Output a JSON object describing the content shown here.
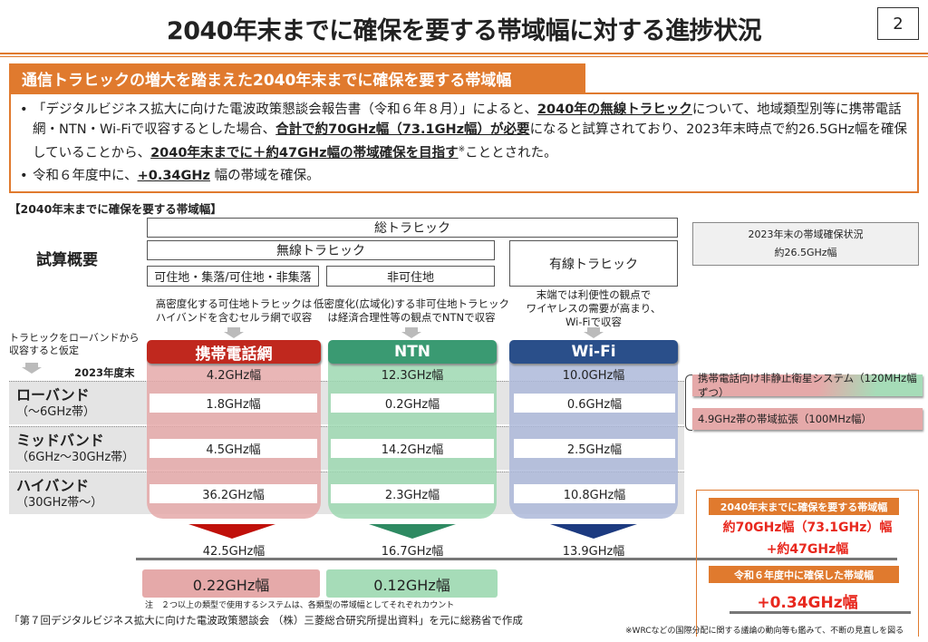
{
  "title": "2040年末までに確保を要する帯域幅に対する進捗状況",
  "page_number": "2",
  "summary": {
    "header": "通信トラヒックの増大を踏まえた2040年末までに確保を要する帯域幅",
    "b1_a": "「デジタルビジネス拡大に向けた電波政策懇談会報告書（令和６年８月）」によると、",
    "b1_u1": "2040年の無線トラヒック",
    "b1_b": "について、地域類型別等に携帯電話網・NTN・Wi-Fiで収容するとした場合、",
    "b1_u2": "合計で約70GHz幅（73.1GHz幅）が必要",
    "b1_c": "になると試算されており、2023年末時点で約26.5GHz幅を確保していることから、",
    "b1_u3": "2040年末までに＋約47GHz幅の帯域確保を目指す",
    "b1_note": "※",
    "b1_d": "こととされた。",
    "b2_a": "令和６年度中に、",
    "b2_u": "+0.34GHz",
    "b2_b": " 幅の帯域を確保。"
  },
  "diagram": {
    "section_label": "【2040年末までに確保を要する帯域幅】",
    "overview_label": "試算概要",
    "total_traffic": "総トラヒック",
    "wireless_traffic": "無線トラヒック",
    "wired_traffic": "有線トラヒック",
    "habitable": "可住地・集落/可住地・非集落",
    "non_habitable": "非可住地",
    "desc_cellular": "高密度化する可住地トラヒックは\nハイバンドを含むセルラ網で収容",
    "desc_ntn": "低密度化(広域化)する非可住地トラヒック\nは経済合理性等の観点でNTNで収容",
    "desc_wifi": "末端では利便性の観点で\nワイヤレスの需要が高まり、\nWi-Fiで収容",
    "assumption": "トラヒックをローバンドから\n収容すると仮定",
    "year_label": "2023年度末",
    "columns": [
      {
        "name": "携帯電話網",
        "color": "#c0281e",
        "current": "4.2GHz幅",
        "low": "1.8GHz幅",
        "mid": "4.5GHz幅",
        "high": "36.2GHz幅",
        "total": "42.5GHz幅",
        "secured": "0.22GHz幅"
      },
      {
        "name": "NTN",
        "color": "#3a9a72",
        "current": "12.3GHz幅",
        "low": "0.2GHz幅",
        "mid": "14.2GHz幅",
        "high": "2.3GHz幅",
        "total": "16.7GHz幅",
        "secured": "0.12GHz幅"
      },
      {
        "name": "Wi-Fi",
        "color": "#2a4f8a",
        "current": "10.0GHz幅",
        "low": "0.6GHz幅",
        "mid": "2.5GHz幅",
        "high": "10.8GHz幅",
        "total": "13.9GHz幅"
      }
    ],
    "bands": [
      {
        "name": "ローバンド",
        "range": "（～6GHz帯）"
      },
      {
        "name": "ミッドバンド",
        "range": "（6GHz～30GHz帯）"
      },
      {
        "name": "ハイバンド",
        "range": "（30GHz帯～）"
      }
    ],
    "note": "注　２つ以上の類型で使用するシステムは、各類型の帯域幅としてそれぞれカウント",
    "source": "「第７回デジタルビジネス拡大に向けた電波政策懇談会 （株）三菱総合研究所提出資料」を元に総務省で作成"
  },
  "right": {
    "status_title": "2023年末の帯域確保状況",
    "status_value": "約26.5GHz幅",
    "item1": "携帯電話向け非静止衛星システム（120MHz幅ずつ）",
    "item2": "4.9GHz帯の帯域拡張（100MHz幅）",
    "target_header": "2040年末までに確保を要する帯域幅",
    "target_value1": "約70GHz幅（73.1GHz）幅",
    "target_value2": "+約47GHz幅",
    "secured_header": "令和６年度中に確保した帯域幅",
    "secured_value": "+0.34GHz幅",
    "footnote": "※WRCなどの国際分配に関する議論の動向等も鑑みて、不断の見直しを図る"
  }
}
